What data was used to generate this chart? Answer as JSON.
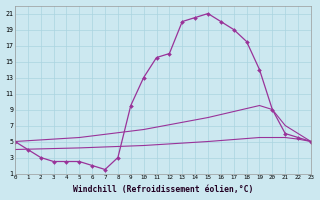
{
  "xlabel": "Windchill (Refroidissement éolien,°C)",
  "xlim": [
    0,
    23
  ],
  "ylim": [
    1,
    22
  ],
  "xticks": [
    0,
    1,
    2,
    3,
    4,
    5,
    6,
    7,
    8,
    9,
    10,
    11,
    12,
    13,
    14,
    15,
    16,
    17,
    18,
    19,
    20,
    21,
    22,
    23
  ],
  "yticks": [
    1,
    3,
    5,
    7,
    9,
    11,
    13,
    15,
    17,
    19,
    21
  ],
  "bg_color": "#cce8f0",
  "grid_color": "#aad4e0",
  "line_color": "#993399",
  "curve1_x": [
    0,
    1,
    2,
    3,
    4,
    5,
    6,
    7,
    8,
    9,
    10,
    11,
    12,
    13,
    14,
    15,
    16,
    17,
    18,
    19,
    20,
    21,
    22,
    23
  ],
  "curve1_y": [
    5,
    4,
    3,
    2.5,
    2.5,
    2.5,
    2,
    1.5,
    3,
    9.5,
    13,
    15.5,
    16,
    20,
    20.5,
    21,
    20,
    19,
    17.5,
    14,
    9,
    6,
    5.5,
    5
  ],
  "curve2_x": [
    0,
    5,
    10,
    15,
    19,
    20,
    21,
    22,
    23
  ],
  "curve2_y": [
    5,
    5.5,
    6.5,
    8,
    9.5,
    9,
    7,
    6,
    5
  ],
  "curve3_x": [
    0,
    5,
    10,
    15,
    19,
    20,
    21,
    22,
    23
  ],
  "curve3_y": [
    4,
    4.2,
    4.5,
    5,
    5.5,
    5.5,
    5.5,
    5.3,
    5
  ]
}
